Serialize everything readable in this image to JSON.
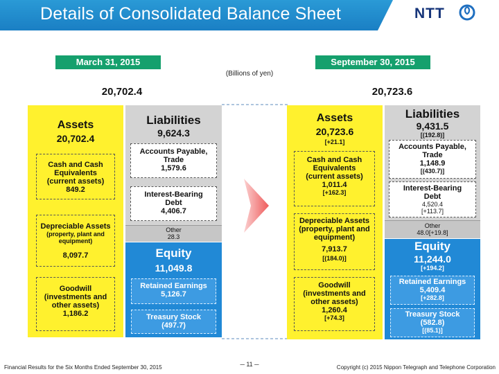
{
  "title": "Details of Consolidated Balance Sheet",
  "logo": "NTT",
  "units": "(Billions of yen)",
  "left": {
    "date": "March 31, 2015",
    "total": "20,702.4",
    "assets": {
      "title": "Assets",
      "value": "20,702.4",
      "cash": {
        "label": [
          "Cash and Cash",
          "Equivalents",
          "(current assets)"
        ],
        "value": "849.2"
      },
      "depreciable": {
        "label": "Depreciable Assets",
        "sub": [
          "(property, plant and",
          "equipment)"
        ],
        "value": "8,097.7"
      },
      "goodwill": {
        "label": [
          "Goodwill",
          "(investments and",
          "other assets)"
        ],
        "value": "1,186.2"
      }
    },
    "liabilities": {
      "title": "Liabilities",
      "value": "9,624.3",
      "payable": {
        "label": [
          "Accounts Payable,",
          "Trade"
        ],
        "value": "1,579.6"
      },
      "debt": {
        "label": [
          "Interest-Bearing",
          "Debt"
        ],
        "value": "4,406.7"
      },
      "other": {
        "label": "Other",
        "value": "28.3"
      }
    },
    "equity": {
      "title": "Equity",
      "value": "11,049.8",
      "retained": {
        "label": "Retained Earnings",
        "value": "5,126.7"
      },
      "treasury": {
        "label": "Treasury Stock",
        "value": "(497.7)"
      }
    }
  },
  "right": {
    "date": "September 30, 2015",
    "total": "20,723.6",
    "assets": {
      "title": "Assets",
      "value": "20,723.6",
      "change": "[+21.1]",
      "cash": {
        "label": [
          "Cash and Cash",
          "Equivalents",
          "(current assets)"
        ],
        "value": "1,011.4",
        "change": "[+162.3]"
      },
      "depreciable": {
        "label": [
          "Depreciable Assets",
          "(property, plant and",
          "equipment)"
        ],
        "value": "7,913.7",
        "change": "[(184.0)]"
      },
      "goodwill": {
        "label": [
          "Goodwill",
          "(investments and",
          "other assets)"
        ],
        "value": "1,260.4",
        "change": "[+74.3]"
      }
    },
    "liabilities": {
      "title": "Liabilities",
      "value": "9,431.5",
      "change": "[(192.8)]",
      "payable": {
        "label": [
          "Accounts Payable,",
          "Trade"
        ],
        "value": "1,148.9",
        "change": "[(430.7)]"
      },
      "debt": {
        "label": [
          "Interest-Bearing",
          "Debt"
        ],
        "value": "4,520.4",
        "change": "[+113.7]"
      },
      "other": {
        "label": "Other",
        "value": "48.0[+19.8]"
      }
    },
    "equity": {
      "title": "Equity",
      "value": "11,244.0",
      "change": "[+194.2]",
      "retained": {
        "label": "Retained Earnings",
        "value": "5,409.4",
        "change": "[+282.8]"
      },
      "treasury": {
        "label": "Treasury Stock",
        "value": "(582.8)",
        "change": "[(85.1)]"
      }
    }
  },
  "footer": {
    "left": "Financial Results for the Six Months Ended September 30, 2015",
    "page": "─ 11 ─",
    "copyright": "Copyright (c) 2015 Nippon Telegraph and Telephone Corporation"
  },
  "colors": {
    "assets": "#fff12e",
    "liabilities": "#d3d3d3",
    "equity": "#2189d6",
    "header": "#1a7fc4",
    "date_tag": "#15a06d",
    "arrow": "#f06a6a"
  }
}
